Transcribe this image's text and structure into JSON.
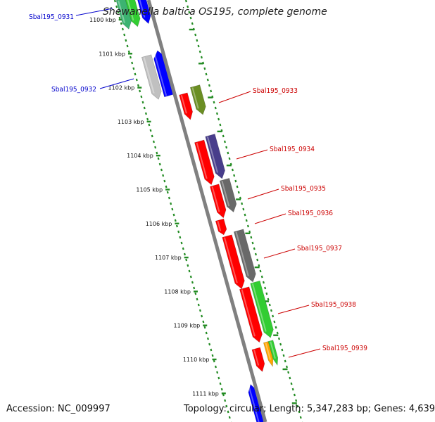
{
  "title": "Shewanella baltica OS195, complete genome",
  "footer": {
    "accession": "Accession: NC_009997",
    "summary": "Topology: circular; Length: 5,347,283 bp; Genes: 4,639"
  },
  "colors": {
    "red": "#ff0000",
    "olive": "#6b8e23",
    "slate": "#483d8b",
    "gray": "#696969",
    "green": "#32cd32",
    "blue": "#0000ff",
    "silver": "#c0c0c0",
    "orange": "#ffa500",
    "forest": "#3cb371",
    "label_blue": "#0000cc",
    "label_red": "#cc0000",
    "tick_green": "#228b22",
    "backbone": "#808080"
  },
  "ticks": [
    "1100 kbp",
    "1101 kbp",
    "1102 kbp",
    "1103 kbp",
    "1104 kbp",
    "1105 kbp",
    "1106 kbp",
    "1107 kbp",
    "1108 kbp",
    "1109 kbp",
    "1110 kbp",
    "1111 kbp"
  ],
  "gene_labels": {
    "g0931": "Sbal195_0931",
    "g0932": "Sbal195_0932",
    "g0933": "Sbal195_0933",
    "g0934": "Sbal195_0934",
    "g0935": "Sbal195_0935",
    "g0936": "Sbal195_0936",
    "g0937": "Sbal195_0937",
    "g0938": "Sbal195_0938",
    "g0939": "Sbal195_0939"
  }
}
